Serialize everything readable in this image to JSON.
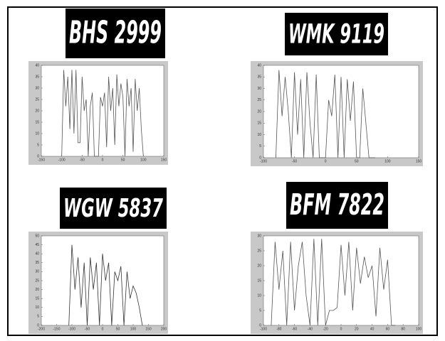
{
  "plates": [
    "BHS 2999",
    "WMK 9119",
    "WGW 5837",
    "BFM 7822"
  ],
  "chart_data": [
    {
      "type": "line",
      "x": [
        -100,
        -95,
        -90,
        -85,
        -80,
        -75,
        -70,
        -65,
        -60,
        -55,
        -50,
        -45,
        -40,
        -35,
        -30,
        -25,
        -20,
        -15,
        -10,
        -5,
        0,
        5,
        10,
        15,
        20,
        25,
        30,
        35,
        40,
        45,
        50,
        55,
        60,
        65,
        70,
        75,
        80,
        85,
        90,
        95,
        100
      ],
      "series": [
        {
          "color": "#555555",
          "values": [
            0,
            38,
            22,
            35,
            12,
            38,
            10,
            38,
            6,
            6,
            35,
            20,
            25,
            0,
            22,
            28,
            0,
            0,
            0,
            26,
            22,
            28,
            4,
            35,
            20,
            30,
            5,
            36,
            22,
            32,
            26,
            0,
            34,
            22,
            30,
            2,
            34,
            20,
            30,
            12,
            0
          ]
        }
      ],
      "xlim": [
        -150,
        150
      ],
      "xticks": [
        -150,
        -100,
        -50,
        0,
        50,
        100,
        150
      ],
      "ylim": [
        0,
        40
      ],
      "yticks": [
        0,
        5,
        10,
        15,
        20,
        25,
        30,
        35,
        40
      ]
    },
    {
      "type": "line",
      "x": [
        -80,
        -75,
        -70,
        -65,
        -60,
        -55,
        -50,
        -45,
        -40,
        -35,
        -30,
        -25,
        -20,
        -15,
        -10,
        -5,
        0,
        5,
        10,
        15,
        20,
        25,
        30,
        35,
        40,
        45,
        50,
        55,
        60,
        65,
        70,
        75,
        80
      ],
      "series": [
        {
          "color": "#555555",
          "values": [
            0,
            38,
            18,
            35,
            20,
            0,
            37,
            10,
            34,
            0,
            37,
            15,
            0,
            36,
            0,
            0,
            0,
            25,
            18,
            36,
            0,
            35,
            0,
            34,
            16,
            33,
            0,
            0,
            30,
            15,
            0,
            0,
            0
          ]
        }
      ],
      "xlim": [
        -100,
        150
      ],
      "xticks": [
        -100,
        -50,
        0,
        50,
        100,
        150
      ],
      "ylim": [
        0,
        40
      ],
      "yticks": [
        0,
        5,
        10,
        15,
        20,
        25,
        30,
        35,
        40
      ]
    },
    {
      "type": "line",
      "x": [
        -110,
        -100,
        -90,
        -80,
        -70,
        -60,
        -50,
        -40,
        -30,
        -20,
        -10,
        0,
        10,
        20,
        30,
        40,
        50,
        60,
        70,
        80,
        90,
        100,
        110,
        120,
        130
      ],
      "series": [
        {
          "color": "#333333",
          "values": [
            0,
            45,
            20,
            38,
            10,
            35,
            0,
            38,
            20,
            35,
            0,
            40,
            25,
            35,
            0,
            30,
            25,
            33,
            0,
            30,
            15,
            22,
            18,
            10,
            0
          ]
        }
      ],
      "xlim": [
        -200,
        200
      ],
      "xticks": [
        -200,
        -150,
        -100,
        -50,
        0,
        50,
        100,
        150,
        200
      ],
      "ylim": [
        0,
        50
      ],
      "yticks": [
        0,
        5,
        10,
        15,
        20,
        25,
        30,
        35,
        40,
        45,
        50
      ]
    },
    {
      "type": "line",
      "x": [
        -90,
        -85,
        -80,
        -75,
        -70,
        -65,
        -60,
        -55,
        -50,
        -45,
        -40,
        -35,
        -30,
        -25,
        -20,
        -15,
        -10,
        -5,
        0,
        5,
        10,
        15,
        20,
        25,
        30,
        35,
        40,
        45,
        50,
        55,
        60,
        65,
        70
      ],
      "series": [
        {
          "color": "#555555",
          "values": [
            0,
            28,
            12,
            25,
            0,
            28,
            5,
            20,
            28,
            10,
            0,
            29,
            0,
            29,
            0,
            5,
            5,
            6,
            27,
            10,
            28,
            5,
            26,
            14,
            23,
            16,
            20,
            3,
            26,
            12,
            22,
            0,
            0
          ]
        }
      ],
      "xlim": [
        -100,
        100
      ],
      "xticks": [
        -100,
        -80,
        -60,
        -40,
        -20,
        0,
        20,
        40,
        60,
        80,
        100
      ],
      "ylim": [
        0,
        30
      ],
      "yticks": [
        0,
        5,
        10,
        15,
        20,
        25,
        30
      ]
    }
  ]
}
